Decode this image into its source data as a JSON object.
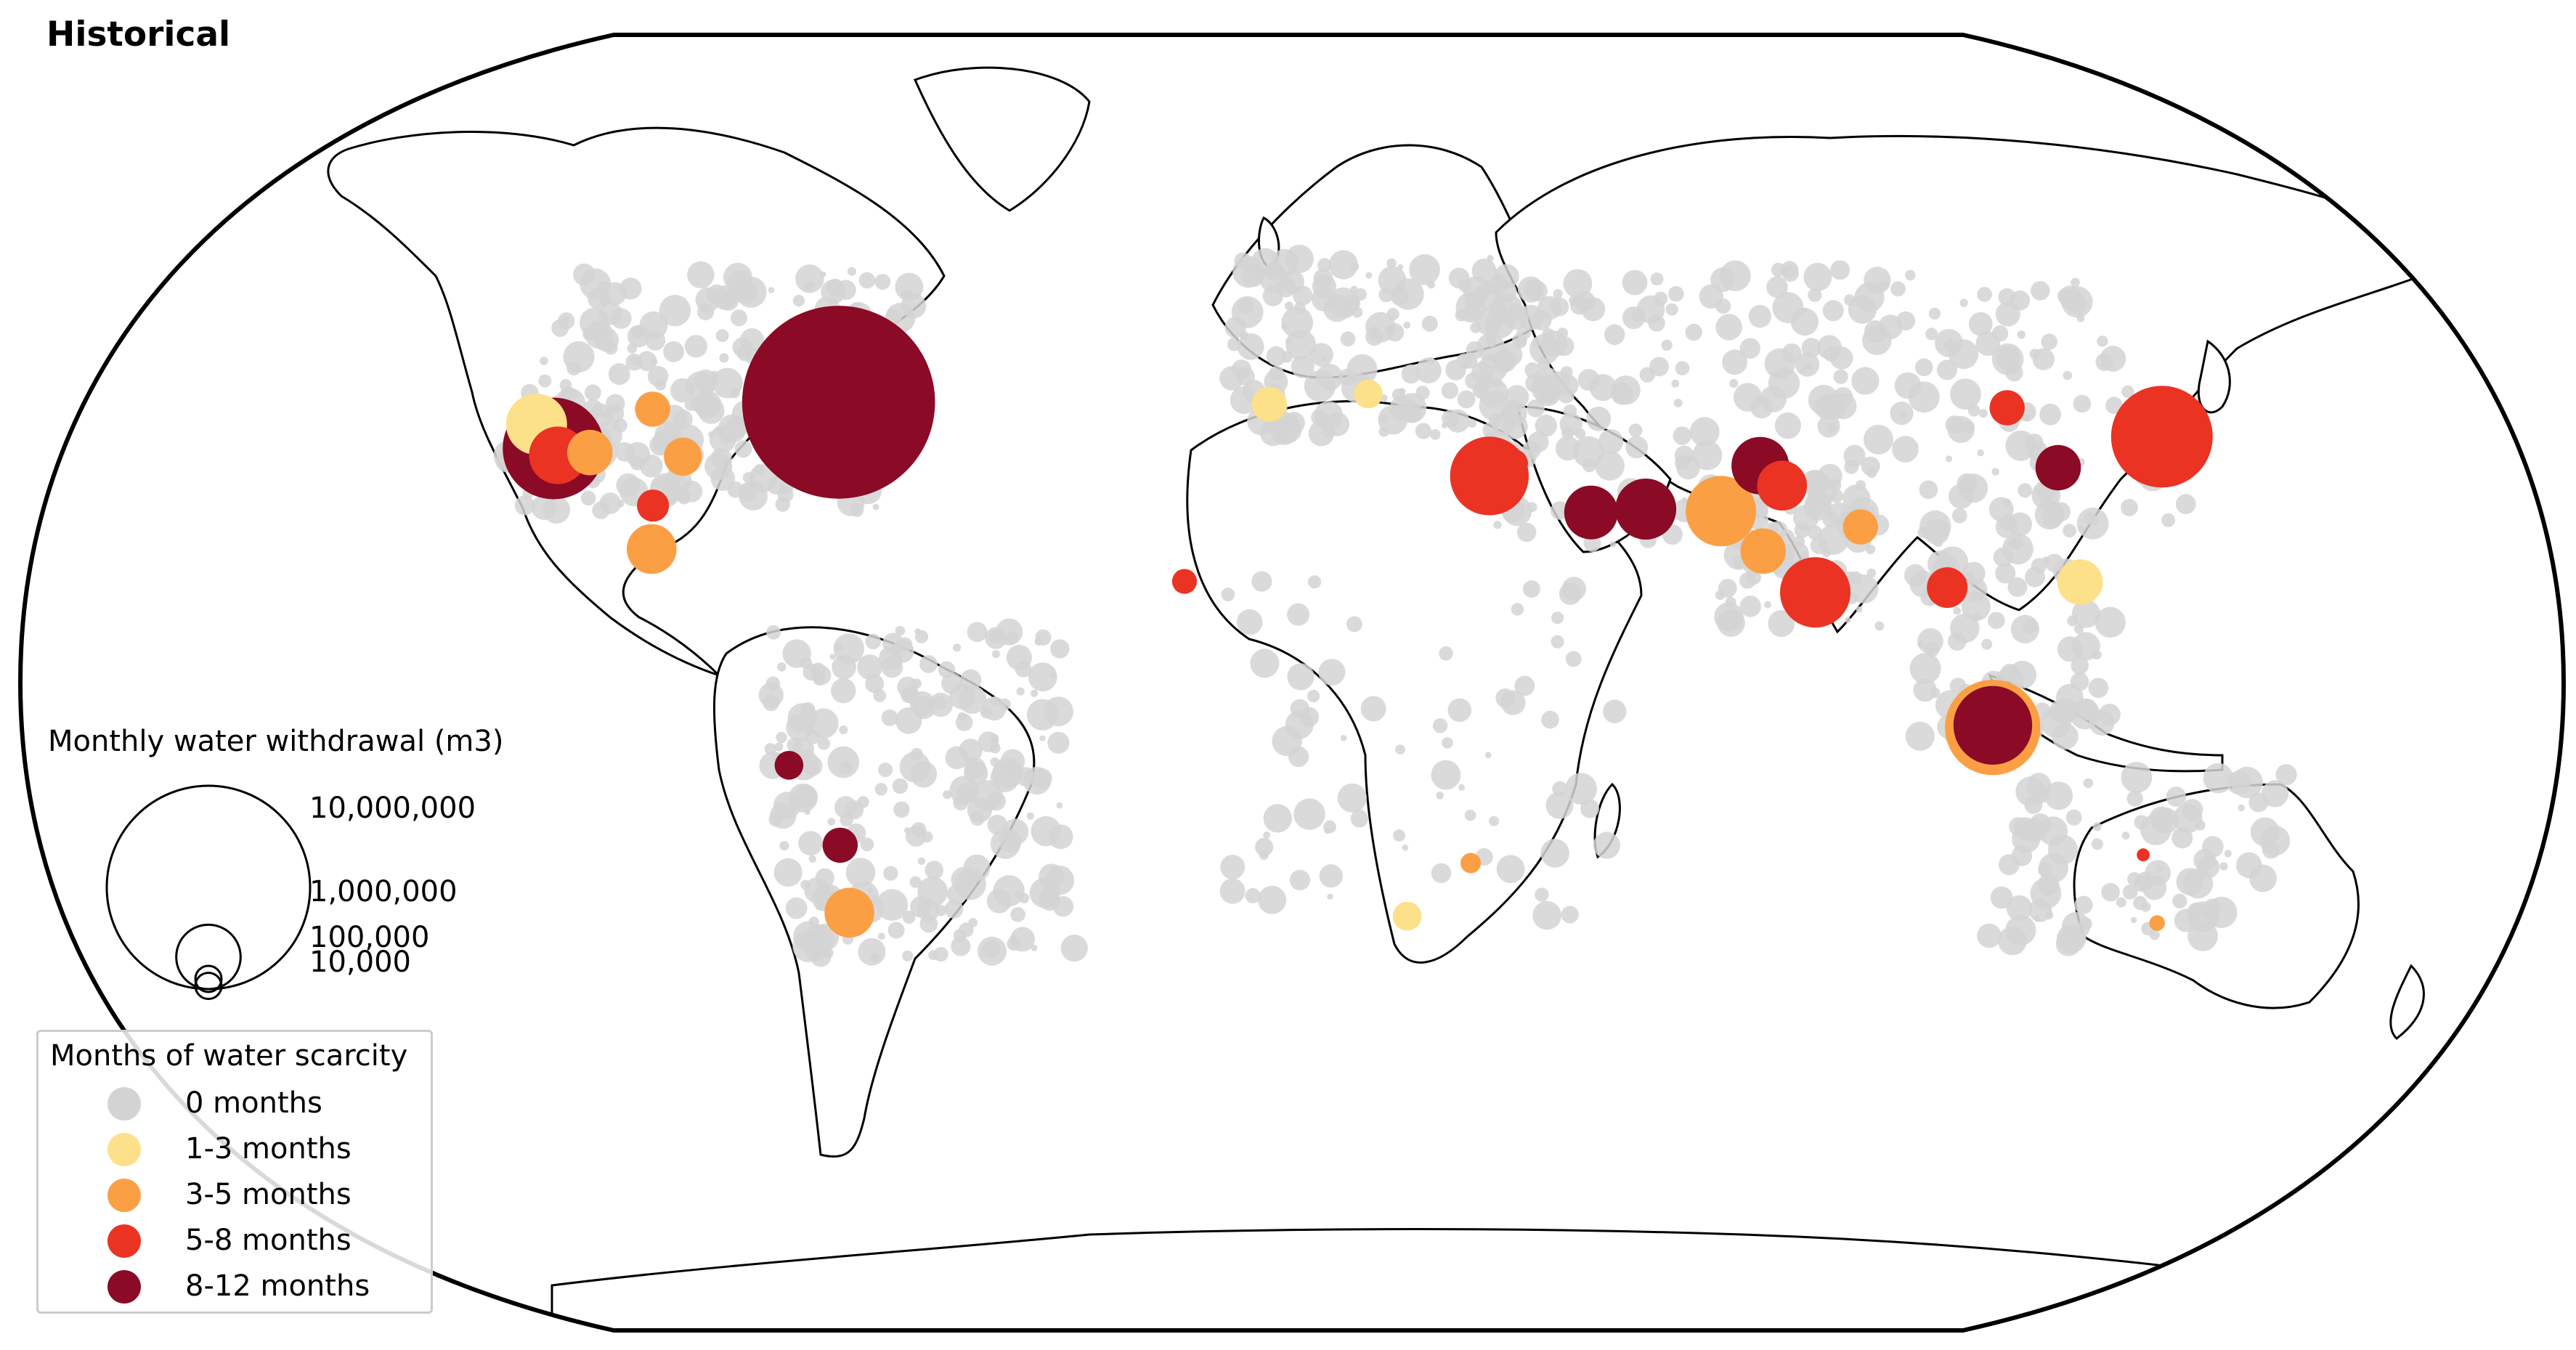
{
  "title": "Historical",
  "size_legend": {
    "title": "Monthly water withdrawal (m3)",
    "entries": [
      {
        "label": "10,000,000",
        "value": 10000000
      },
      {
        "label": "1,000,000",
        "value": 1000000
      },
      {
        "label": "100,000",
        "value": 100000
      },
      {
        "label": "10,000",
        "value": 10000
      }
    ]
  },
  "color_legend": {
    "title": "Months of water scarcity",
    "items": [
      {
        "label": "0 months",
        "color": "#d3d3d3"
      },
      {
        "label": "1-3 months",
        "color": "#fde08a"
      },
      {
        "label": "3-5 months",
        "color": "#fb9f45"
      },
      {
        "label": "5-8 months",
        "color": "#eb3323"
      },
      {
        "label": "8-12 months",
        "color": "#8b0a26"
      }
    ]
  },
  "colors": {
    "land_outline": "#000000",
    "ocean": "#ffffff",
    "frame": "#000000"
  },
  "chart_data": {
    "type": "scatter",
    "projection": "Robinson",
    "encoding": {
      "size": "Monthly water withdrawal (m3)",
      "color": "Months of water scarcity"
    },
    "points": [
      {
        "lon": -74,
        "lat": 40.7,
        "category": "8-12 months",
        "withdrawal": 9000000
      },
      {
        "lon": -118,
        "lat": 34,
        "category": "8-12 months",
        "withdrawal": 2500000
      },
      {
        "lon": -117,
        "lat": 33,
        "category": "5-8 months",
        "withdrawal": 800000
      },
      {
        "lon": -122,
        "lat": 37.5,
        "category": "1-3 months",
        "withdrawal": 900000
      },
      {
        "lon": -112,
        "lat": 33.4,
        "category": "3-5 months",
        "withdrawal": 500000
      },
      {
        "lon": -104,
        "lat": 39.7,
        "category": "3-5 months",
        "withdrawal": 300000
      },
      {
        "lon": -97,
        "lat": 32.8,
        "category": "3-5 months",
        "withdrawal": 350000
      },
      {
        "lon": -100,
        "lat": 25.7,
        "category": "5-8 months",
        "withdrawal": 250000
      },
      {
        "lon": -99,
        "lat": 19.4,
        "category": "3-5 months",
        "withdrawal": 600000
      },
      {
        "lon": -16.5,
        "lat": 14.7,
        "category": "5-8 months",
        "withdrawal": 150000
      },
      {
        "lon": 31.2,
        "lat": 30.0,
        "category": "5-8 months",
        "withdrawal": 1500000
      },
      {
        "lon": 46.7,
        "lat": 24.7,
        "category": "8-12 months",
        "withdrawal": 700000
      },
      {
        "lon": 55.3,
        "lat": 25.2,
        "category": "8-12 months",
        "withdrawal": 900000
      },
      {
        "lon": 67,
        "lat": 24.9,
        "category": "3-5 months",
        "withdrawal": 1200000
      },
      {
        "lon": 74.3,
        "lat": 31.5,
        "category": "8-12 months",
        "withdrawal": 800000
      },
      {
        "lon": 77.2,
        "lat": 28.6,
        "category": "5-8 months",
        "withdrawal": 600000
      },
      {
        "lon": 80.2,
        "lat": 13.1,
        "category": "5-8 months",
        "withdrawal": 1200000
      },
      {
        "lon": 72.8,
        "lat": 19.1,
        "category": "3-5 months",
        "withdrawal": 500000
      },
      {
        "lon": 88.4,
        "lat": 22.6,
        "category": "3-5 months",
        "withdrawal": 300000
      },
      {
        "lon": 100.5,
        "lat": 13.8,
        "category": "5-8 months",
        "withdrawal": 400000
      },
      {
        "lon": 106.8,
        "lat": -6.2,
        "category": "8-12 months",
        "withdrawal": 1500000
      },
      {
        "lon": 106.8,
        "lat": -6.5,
        "category": "3-5 months",
        "withdrawal": 2200000
      },
      {
        "lon": 121.5,
        "lat": 31.2,
        "category": "8-12 months",
        "withdrawal": 500000
      },
      {
        "lon": 116.4,
        "lat": 39.9,
        "category": "5-8 months",
        "withdrawal": 300000
      },
      {
        "lon": 139.7,
        "lat": 35.7,
        "category": "5-8 months",
        "withdrawal": 2500000
      },
      {
        "lon": 35.2,
        "lat": 31.8,
        "category": "5-8 months",
        "withdrawal": 200000
      },
      {
        "lon": -70.6,
        "lat": -33.4,
        "category": "3-5 months",
        "withdrawal": 600000
      },
      {
        "lon": -70.4,
        "lat": -23.6,
        "category": "8-12 months",
        "withdrawal": 300000
      },
      {
        "lon": -77,
        "lat": -12,
        "category": "8-12 months",
        "withdrawal": 200000
      },
      {
        "lon": 18.4,
        "lat": -33.9,
        "category": "1-3 months",
        "withdrawal": 200000
      },
      {
        "lon": 28,
        "lat": -26.2,
        "category": "3-5 months",
        "withdrawal": 100000
      },
      {
        "lon": 138.6,
        "lat": -34.9,
        "category": "3-5 months",
        "withdrawal": 60000
      },
      {
        "lon": 133,
        "lat": -25,
        "category": "5-8 months",
        "withdrawal": 40000
      },
      {
        "lon": -3.7,
        "lat": 40.4,
        "category": "1-3 months",
        "withdrawal": 300000
      },
      {
        "lon": 12.5,
        "lat": 41.9,
        "category": "1-3 months",
        "withdrawal": 200000
      },
      {
        "lon": 121,
        "lat": 14.6,
        "category": "1-3 months",
        "withdrawal": 500000
      }
    ]
  }
}
